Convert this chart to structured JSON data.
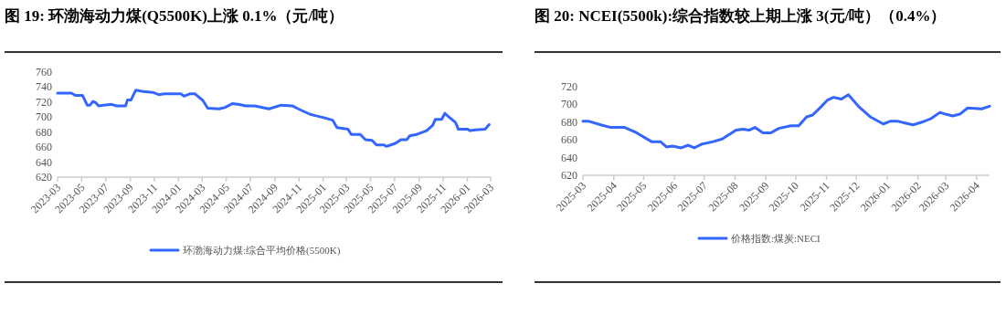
{
  "chart_data": [
    {
      "type": "line",
      "title": "图  19:  环渤海动力煤(Q5500K)上涨 0.1%（元/吨）",
      "legend": "bottom",
      "grid": false,
      "marker": "none",
      "line_style": "solid",
      "xlim": [
        "2023-03-01",
        "2026-03-01"
      ],
      "xticks": [
        "2023-03",
        "2023-05",
        "2023-07",
        "2023-09",
        "2023-11",
        "2024-01",
        "2024-03",
        "2024-05",
        "2024-07",
        "2024-09",
        "2024-11",
        "2025-01",
        "2025-03",
        "2025-05",
        "2025-07",
        "2025-09",
        "2025-11",
        "2026-01",
        "2026-03"
      ],
      "ylim": [
        620,
        760
      ],
      "yticks": [
        620,
        640,
        660,
        680,
        700,
        720,
        740,
        760
      ],
      "series": [
        {
          "name": "环渤海动力煤:综合平均价格(5500K)",
          "color": "#3366ff",
          "x": [
            "2023-03-01",
            "2023-04-05",
            "2023-04-15",
            "2023-05-03",
            "2023-05-15",
            "2023-05-22",
            "2023-05-30",
            "2023-06-06",
            "2023-06-13",
            "2023-06-26",
            "2023-07-16",
            "2023-07-28",
            "2023-08-20",
            "2023-08-25",
            "2023-09-03",
            "2023-09-15",
            "2023-10-05",
            "2023-10-28",
            "2023-11-12",
            "2023-11-26",
            "2023-12-07",
            "2024-01-07",
            "2024-01-15",
            "2024-01-29",
            "2024-02-12",
            "2024-03-03",
            "2024-03-15",
            "2024-04-13",
            "2024-04-28",
            "2024-05-16",
            "2024-05-31",
            "2024-06-20",
            "2024-07-12",
            "2024-08-17",
            "2024-09-17",
            "2024-10-15",
            "2024-10-30",
            "2024-11-28",
            "2024-12-12",
            "2025-01-05",
            "2025-01-25",
            "2025-02-05",
            "2025-03-05",
            "2025-03-13",
            "2025-04-05",
            "2025-04-18",
            "2025-05-05",
            "2025-05-16",
            "2025-06-04",
            "2025-06-10",
            "2025-07-03",
            "2025-07-17",
            "2025-08-01",
            "2025-08-08",
            "2025-08-26",
            "2025-09-20",
            "2025-10-05",
            "2025-10-12",
            "2025-10-28",
            "2025-11-05",
            "2025-11-16",
            "2025-12-02",
            "2025-12-09",
            "2026-01-01",
            "2026-01-08",
            "2026-01-22",
            "2026-02-15",
            "2026-02-25"
          ],
          "values": [
            732,
            732,
            729,
            729,
            716,
            716,
            721,
            719,
            715,
            716,
            717,
            715,
            715,
            723,
            723,
            736,
            734,
            733,
            730,
            731,
            731,
            731,
            728,
            731,
            731,
            722,
            712,
            711,
            713,
            718,
            717,
            715,
            715,
            711,
            716,
            715,
            711,
            704,
            702,
            699,
            696,
            686,
            684,
            677,
            677,
            670,
            669,
            663,
            663,
            661,
            665,
            670,
            670,
            675,
            677,
            682,
            689,
            697,
            697,
            705,
            700,
            693,
            684,
            684,
            682,
            683,
            684,
            690
          ]
        }
      ]
    },
    {
      "type": "line",
      "title": "图  20:  NCEI(5500k):综合指数较上期上涨 3(元/吨）（0.4%）",
      "legend": "bottom",
      "grid": false,
      "marker": "none",
      "line_style": "solid",
      "xlim": [
        "2025-03-01",
        "2026-04-14"
      ],
      "xticks": [
        "2025-03",
        "2025-04",
        "2025-05",
        "2025-06",
        "2025-07",
        "2025-08",
        "2025-09",
        "2025-10",
        "2025-11",
        "2025-12",
        "2026-01",
        "2026-02",
        "2026-03",
        "2026-04"
      ],
      "ylim": [
        620,
        720
      ],
      "yticks": [
        620,
        640,
        660,
        680,
        700,
        720
      ],
      "series": [
        {
          "name": "价格指数:煤炭:NECI",
          "color": "#3366ff",
          "x": [
            "2025-03-01",
            "2025-03-07",
            "2025-03-19",
            "2025-03-29",
            "2025-04-12",
            "2025-04-24",
            "2025-05-09",
            "2025-05-18",
            "2025-05-24",
            "2025-05-30",
            "2025-06-08",
            "2025-06-15",
            "2025-06-21",
            "2025-06-28",
            "2025-07-10",
            "2025-07-19",
            "2025-08-02",
            "2025-08-09",
            "2025-08-15",
            "2025-08-21",
            "2025-08-29",
            "2025-09-06",
            "2025-09-14",
            "2025-09-26",
            "2025-10-04",
            "2025-10-12",
            "2025-10-18",
            "2025-10-27",
            "2025-11-02",
            "2025-11-08",
            "2025-11-16",
            "2025-11-23",
            "2025-12-03",
            "2025-12-15",
            "2025-12-28",
            "2026-01-04",
            "2026-01-12",
            "2026-01-19",
            "2026-01-27",
            "2026-02-05",
            "2026-02-14",
            "2026-02-23",
            "2026-03-01",
            "2026-03-08",
            "2026-03-15",
            "2026-03-23",
            "2026-04-06",
            "2026-04-14"
          ],
          "values": [
            681,
            681,
            677,
            674,
            674,
            668,
            658,
            658,
            652,
            653,
            651,
            654,
            651,
            655,
            658,
            661,
            671,
            672,
            671,
            674,
            668,
            668,
            673,
            676,
            676,
            686,
            688,
            698,
            705,
            708,
            706,
            711,
            698,
            686,
            678,
            681,
            681,
            679,
            677,
            680,
            684,
            691,
            689,
            687,
            689,
            696,
            695,
            698
          ]
        }
      ]
    }
  ]
}
